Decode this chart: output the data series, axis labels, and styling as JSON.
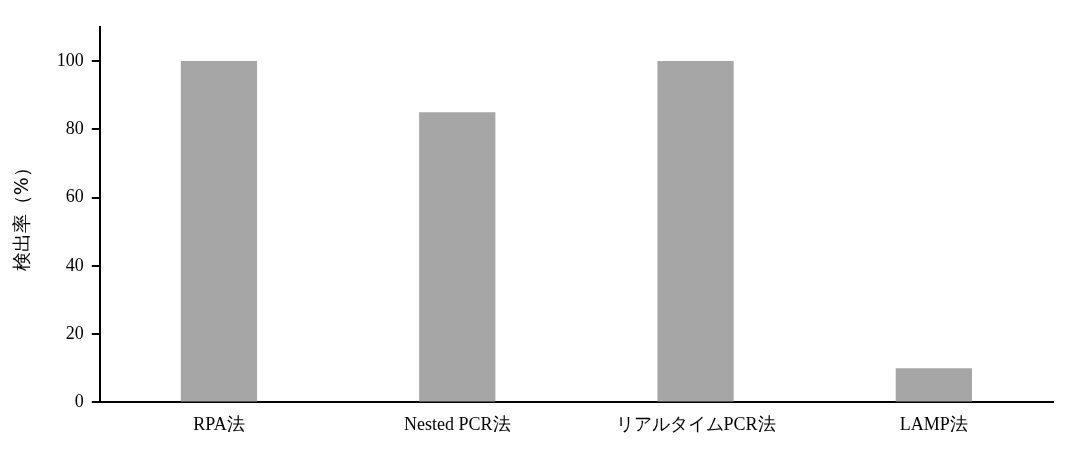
{
  "chart_data": {
    "type": "bar",
    "ylabel": "検出率（%）",
    "categories": [
      "RPA法",
      "Nested PCR法",
      "リアルタイムPCR法",
      "LAMP法"
    ],
    "values": [
      100,
      85,
      100,
      10
    ],
    "color": "#a6a6a6",
    "ylim": [
      0,
      110
    ],
    "yticks": [
      0,
      20,
      40,
      60,
      80,
      100
    ],
    "grid": false,
    "legend": false
  }
}
